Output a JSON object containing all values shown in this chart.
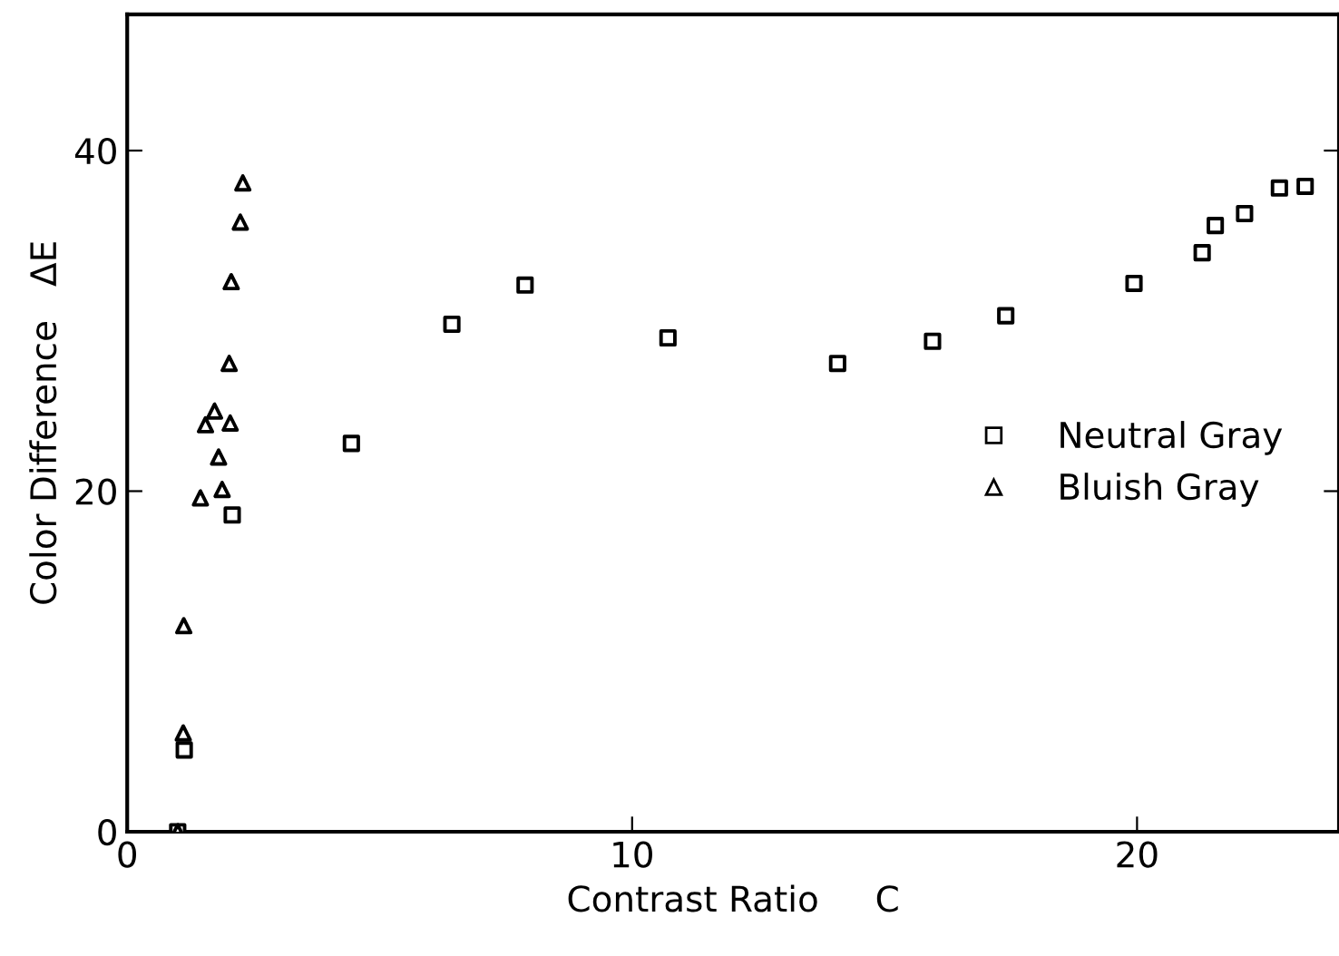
{
  "chart_data": {
    "type": "scatter",
    "xlabel": "Contrast Ratio     C",
    "ylabel": "Color Difference   ΔE",
    "xlim": [
      0,
      24
    ],
    "ylim": [
      0,
      48
    ],
    "xticks": [
      0,
      10,
      20
    ],
    "yticks": [
      0,
      20,
      40
    ],
    "grid": false,
    "legend": "right",
    "series": [
      {
        "name": "Neutral Gray",
        "color": "#000000",
        "marker": "square",
        "x": [
          1,
          1.13,
          2.08,
          4.44,
          6.43,
          7.88,
          10.71,
          14.07,
          15.95,
          17.4,
          19.94,
          21.29,
          21.55,
          22.13,
          22.82,
          23.33
        ],
        "values": [
          0,
          4.8,
          18.6,
          22.8,
          29.8,
          32.1,
          29.0,
          27.5,
          28.8,
          30.3,
          32.2,
          34.0,
          35.6,
          36.3,
          37.8,
          37.9
        ]
      },
      {
        "name": "Bluish Gray",
        "color": "#000000",
        "marker": "triangle",
        "x": [
          1,
          1.11,
          1.12,
          1.45,
          1.88,
          1.81,
          2.04,
          1.55,
          1.73,
          2.02,
          2.06,
          2.24,
          2.29
        ],
        "values": [
          0,
          5.8,
          12.1,
          19.6,
          20.1,
          22.0,
          24.0,
          23.9,
          24.7,
          27.5,
          32.3,
          35.8,
          38.1
        ]
      }
    ]
  }
}
